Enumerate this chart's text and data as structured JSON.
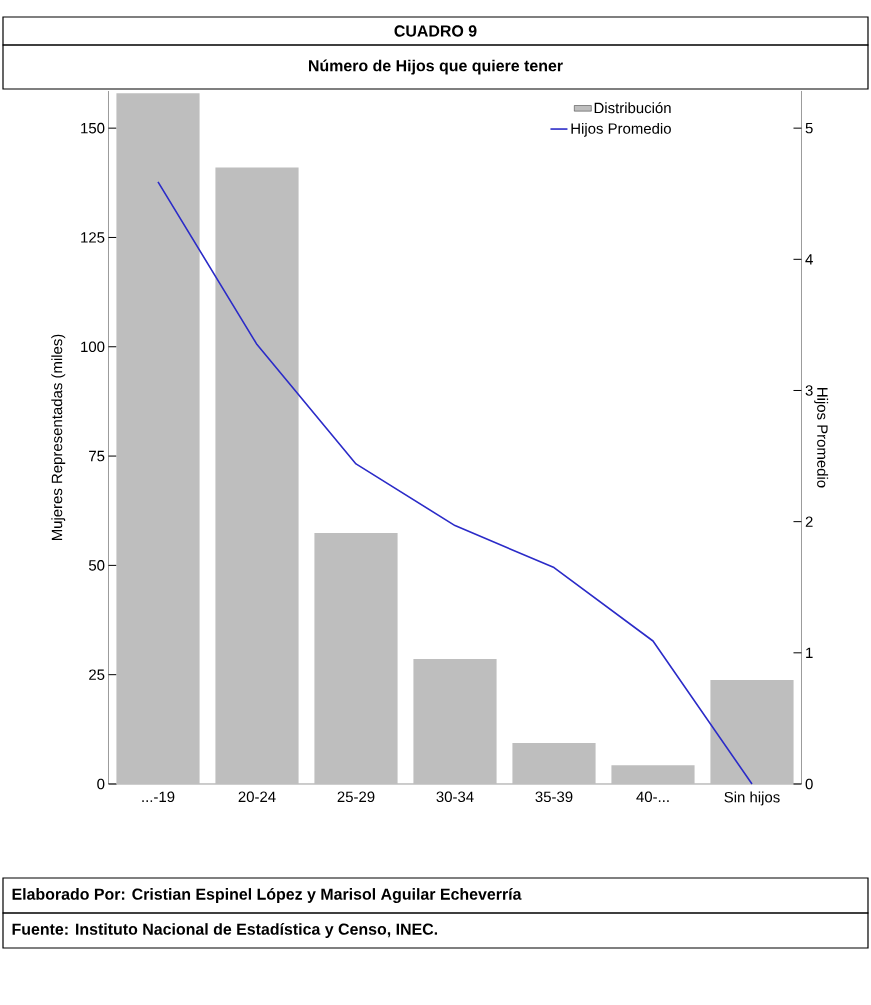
{
  "chart_data": {
    "type": "bar",
    "title": "CUADRO 9",
    "subtitle": "Número de Hijos que quiere tener",
    "categories": [
      "...-19",
      "20-24",
      "25-29",
      "30-34",
      "35-39",
      "40-...",
      "Sin hijos"
    ],
    "series": [
      {
        "name": "Distribución",
        "color": "#bebebe",
        "values": [
          158,
          141,
          57.4,
          28.6,
          9.4,
          4.3,
          23.8
        ]
      },
      {
        "name": "Hijos Promedio",
        "type": "line",
        "axis": "y2",
        "color": "#2b2bc8",
        "values": [
          4.59,
          3.35,
          2.44,
          1.97,
          1.65,
          1.09,
          0
        ]
      }
    ],
    "ylim": [
      0,
      158.5
    ],
    "yticks": [
      0,
      25,
      50,
      75,
      100,
      125,
      150
    ],
    "y2lim": [
      0,
      5.2833
    ],
    "y2ticks": [
      0,
      1,
      2,
      3,
      4,
      5
    ],
    "ylabel": "Mujeres Representadas (miles)",
    "y2label": "Hijos Promedio",
    "legend": "top right",
    "annotations": [
      "Elaborado Por: Cristian Espinel López y Marisol Aguilar Echeverría",
      "Fuente: Instituto Nacional de Estadística y Censo, INEC."
    ]
  }
}
